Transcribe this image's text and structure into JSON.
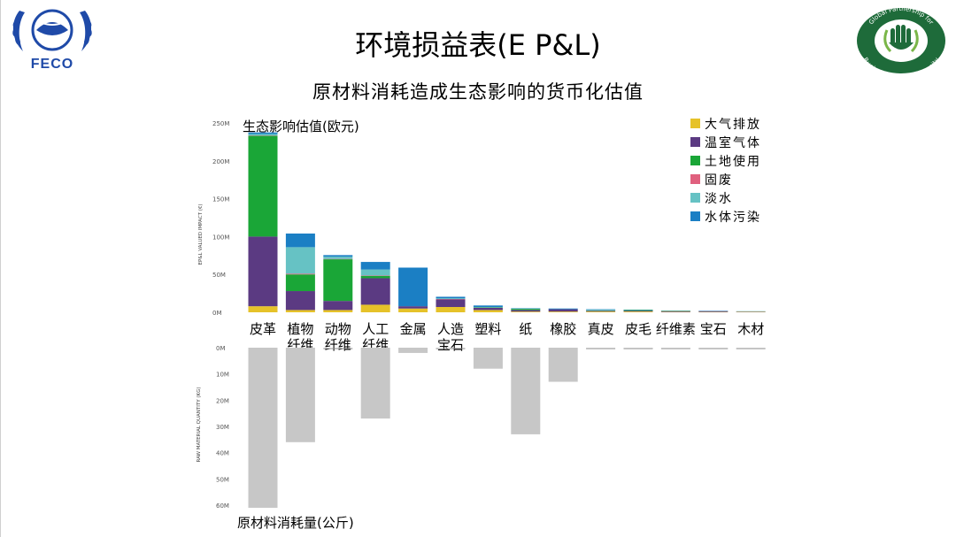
{
  "header": {
    "title": "环境损益表(E P&L)",
    "subtitle": "原材料消耗造成生态影响的货币化估值",
    "left_logo_text": "FECO",
    "right_logo_text_top": "Global Partnership for",
    "right_logo_text_bottom": "Business and Biodiversity"
  },
  "colors": {
    "air": "#e6c229",
    "ghg": "#5b3a82",
    "land": "#1aa637",
    "waste": "#e0607e",
    "water": "#66c2c4",
    "pollution": "#1b7fc4",
    "raw": "#c7c7c7",
    "feco_blue": "#1f4aa8",
    "gpbb_green": "#1e6b3a"
  },
  "chart_data": [
    {
      "type": "bar",
      "stacked": true,
      "title": "生态影响估值(欧元)",
      "ylabel": "EP&L VALUED IMPACT (€)",
      "ylim": [
        0,
        250
      ],
      "yticks": [
        "0M",
        "50M",
        "100M",
        "150M",
        "200M",
        "250M"
      ],
      "categories": [
        "皮革",
        "植物\n纤维",
        "动物\n纤维",
        "人工\n纤维",
        "金属",
        "人造\n宝石",
        "塑料",
        "纸",
        "橡胶",
        "真皮",
        "皮毛",
        "纤维素",
        "宝石",
        "木材"
      ],
      "legend_position": "top-right",
      "series": [
        {
          "name": "大气排放",
          "color_key": "air",
          "values": [
            8,
            3,
            3,
            10,
            5,
            7,
            3,
            1,
            1,
            1,
            1,
            0.5,
            0.5,
            0.5
          ]
        },
        {
          "name": "温室气体",
          "color_key": "ghg",
          "values": [
            92,
            25,
            12,
            35,
            3,
            10,
            3,
            2,
            3,
            1,
            1,
            1,
            1,
            0.5
          ]
        },
        {
          "name": "土地使用",
          "color_key": "land",
          "values": [
            133,
            22,
            55,
            3,
            0,
            0,
            0.5,
            1.5,
            0,
            0.5,
            1,
            0.5,
            0,
            0
          ]
        },
        {
          "name": "固废",
          "color_key": "waste",
          "values": [
            0.5,
            1,
            0.5,
            0.5,
            0,
            0.5,
            0,
            0,
            0,
            0,
            0,
            0,
            0,
            0
          ]
        },
        {
          "name": "淡水",
          "color_key": "water",
          "values": [
            2,
            35,
            3,
            8,
            0,
            1,
            0.5,
            0.5,
            0,
            1,
            0,
            0.5,
            0,
            0.5
          ]
        },
        {
          "name": "水体污染",
          "color_key": "pollution",
          "values": [
            2,
            18,
            2,
            10,
            51,
            2,
            2,
            0.5,
            1,
            0.5,
            0.5,
            0,
            0.5,
            0
          ]
        }
      ]
    },
    {
      "type": "bar",
      "title": "原材料消耗量(公斤)",
      "ylabel": "RAW MATERIAL QUANTITY (KG)",
      "ylim": [
        0,
        60
      ],
      "yticks": [
        "0M",
        "10M",
        "20M",
        "30M",
        "40M",
        "50M",
        "60M"
      ],
      "inverted": true,
      "categories": [
        "皮革",
        "植物纤维",
        "动物纤维",
        "人工纤维",
        "金属",
        "人造宝石",
        "塑料",
        "纸",
        "橡胶",
        "真皮",
        "皮毛",
        "纤维素",
        "宝石",
        "木材"
      ],
      "series": [
        {
          "name": "",
          "color_key": "raw",
          "values": [
            61,
            36,
            0.5,
            27,
            2,
            0.4,
            8,
            33,
            13,
            0.2,
            0.2,
            0.2,
            0.2,
            0.2
          ]
        }
      ]
    }
  ]
}
